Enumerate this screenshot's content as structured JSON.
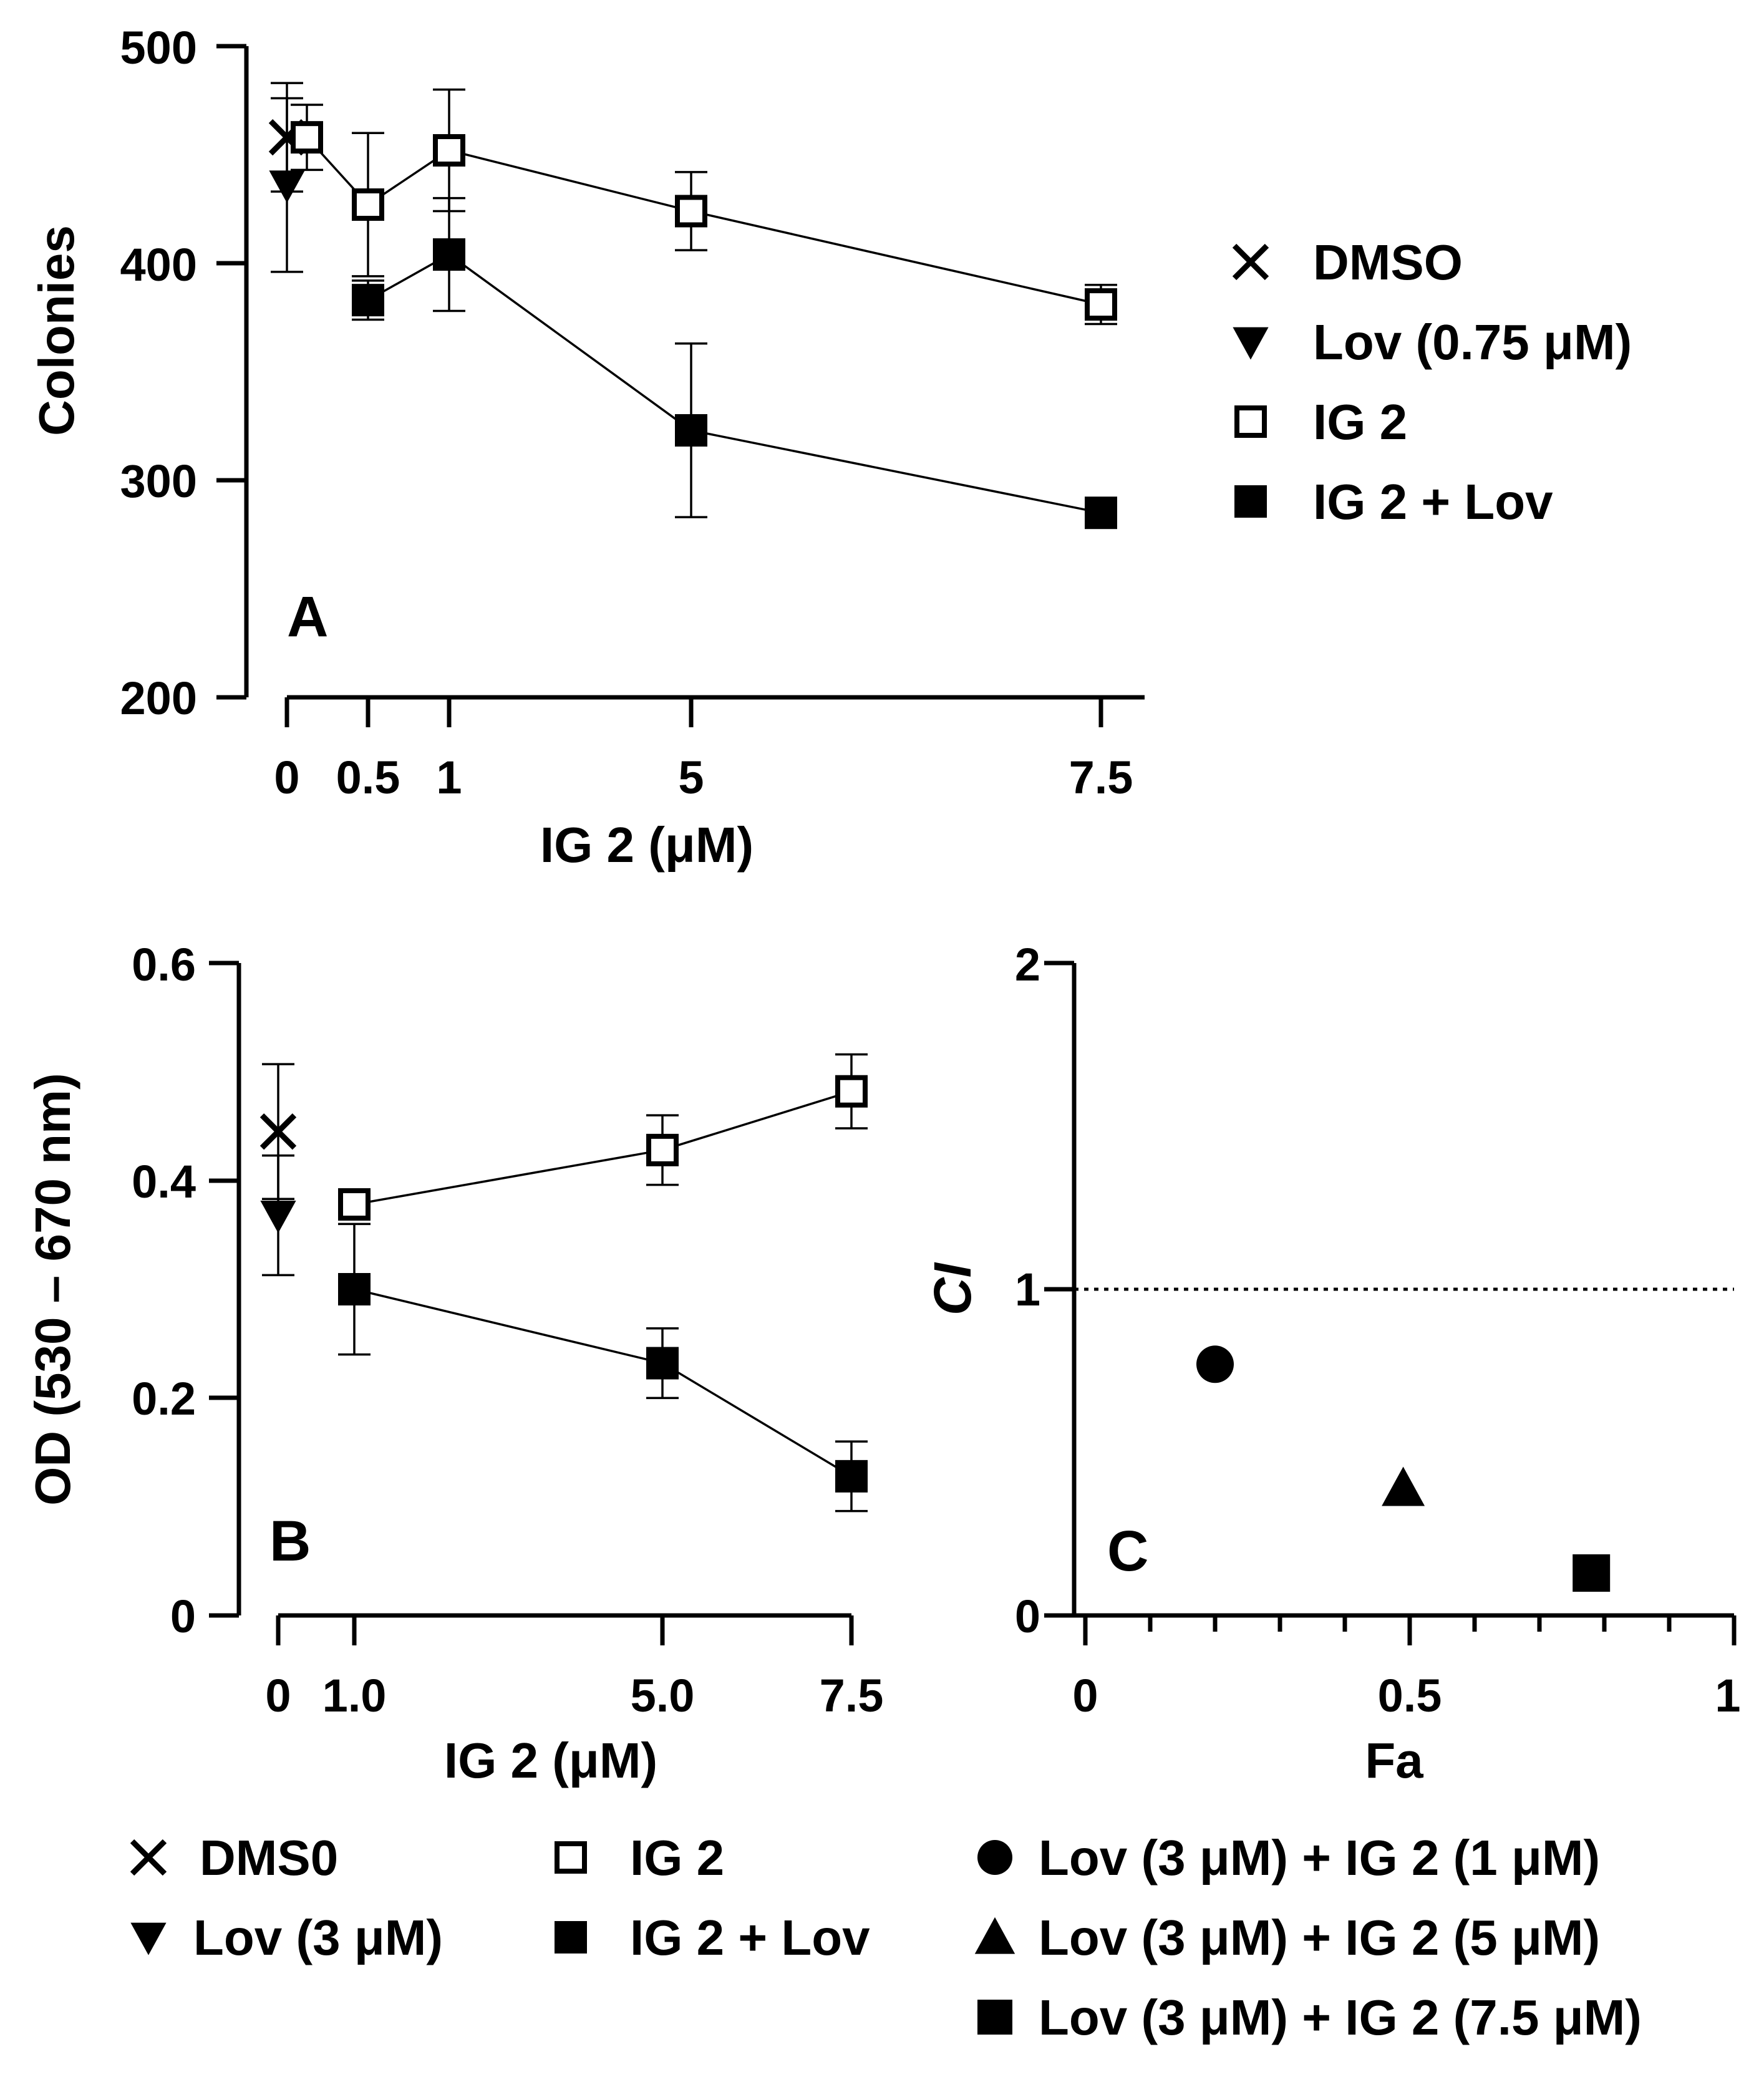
{
  "chart_data": [
    {
      "type": "line",
      "panel_label": "A",
      "xlabel": "IG 2 (μM)",
      "ylabel": "Colonies",
      "x_ticks": [
        "0",
        "0.5",
        "1",
        "5",
        "7.5"
      ],
      "y_ticks": [
        "500",
        "400",
        "300",
        "200"
      ],
      "ylim": [
        200,
        500
      ],
      "legend_position": "right",
      "series": [
        {
          "name": "DMSO",
          "marker": "x",
          "points": [
            {
              "x": "0",
              "y": 458,
              "err": 25
            }
          ]
        },
        {
          "name": "Lov (0.75 μM)",
          "marker": "triangle-down",
          "points": [
            {
              "x": "0",
              "y": 436,
              "err": 40
            }
          ]
        },
        {
          "name": "IG 2",
          "marker": "square-open",
          "connected": true,
          "points": [
            {
              "x": "0",
              "y": 458,
              "err": 15
            },
            {
              "x": "0.5",
              "y": 427,
              "err": 33
            },
            {
              "x": "1",
              "y": 452,
              "err": 28
            },
            {
              "x": "5",
              "y": 424,
              "err": 18
            },
            {
              "x": "7.5",
              "y": 381,
              "err": 9
            }
          ]
        },
        {
          "name": "IG 2 + Lov",
          "marker": "square-filled",
          "connected": true,
          "points": [
            {
              "x": "0.5",
              "y": 383,
              "err": 9
            },
            {
              "x": "1",
              "y": 404,
              "err": 26
            },
            {
              "x": "5",
              "y": 323,
              "err": 40
            },
            {
              "x": "7.5",
              "y": 285,
              "err": 0
            }
          ]
        }
      ]
    },
    {
      "type": "line",
      "panel_label": "B",
      "xlabel": "IG 2 (μM)",
      "ylabel": "OD (530 – 670 nm)",
      "x_ticks": [
        "0",
        "1.0",
        "5.0",
        "7.5"
      ],
      "y_ticks": [
        "0.6",
        "0.4",
        "0.2",
        "0"
      ],
      "ylim": [
        0,
        0.6
      ],
      "legend_position": "bottom",
      "series": [
        {
          "name": "DMS0",
          "marker": "x",
          "points": [
            {
              "x": "0",
              "y": 0.445,
              "err": 0.062
            }
          ]
        },
        {
          "name": "Lov (3 μM)",
          "marker": "triangle-down",
          "points": [
            {
              "x": "0",
              "y": 0.368,
              "err": 0.055
            }
          ]
        },
        {
          "name": "IG 2",
          "marker": "square-open",
          "connected": true,
          "points": [
            {
              "x": "1.0",
              "y": 0.378,
              "err": 0.0
            },
            {
              "x": "5.0",
              "y": 0.428,
              "err": 0.032
            },
            {
              "x": "7.5",
              "y": 0.482,
              "err": 0.034
            }
          ]
        },
        {
          "name": "IG 2 + Lov",
          "marker": "square-filled",
          "connected": true,
          "points": [
            {
              "x": "1.0",
              "y": 0.3,
              "err": 0.06
            },
            {
              "x": "5.0",
              "y": 0.232,
              "err": 0.032
            },
            {
              "x": "7.5",
              "y": 0.128,
              "err": 0.032
            }
          ]
        }
      ]
    },
    {
      "type": "scatter",
      "panel_label": "C",
      "xlabel": "Fa",
      "ylabel": "CI",
      "x_ticks": [
        "0",
        "0.5",
        "1"
      ],
      "y_ticks": [
        "2",
        "1",
        "0"
      ],
      "xlim": [
        0,
        1
      ],
      "ylim": [
        0,
        2
      ],
      "reference_line": {
        "y": 1,
        "style": "dotted"
      },
      "legend_position": "bottom",
      "series": [
        {
          "name": "Lov (3 μM) + IG 2 (1 μM)",
          "marker": "circle",
          "points": [
            {
              "x": 0.2,
              "y": 0.77
            }
          ]
        },
        {
          "name": "Lov (3 μM) + IG 2 (5 μM)",
          "marker": "triangle-up",
          "points": [
            {
              "x": 0.49,
              "y": 0.39
            }
          ]
        },
        {
          "name": "Lov (3 μM) + IG 2 (7.5 μM)",
          "marker": "square-filled",
          "points": [
            {
              "x": 0.78,
              "y": 0.13
            }
          ]
        }
      ]
    }
  ]
}
